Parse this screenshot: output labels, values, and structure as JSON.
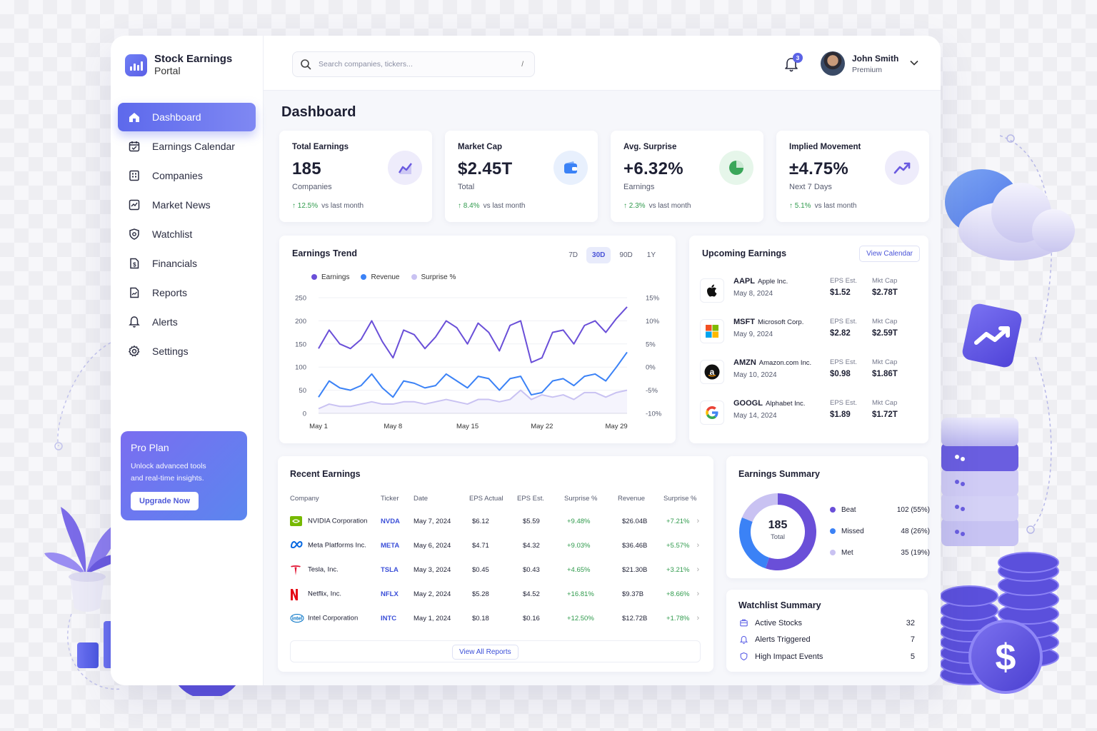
{
  "brand": {
    "title": "Stock Earnings",
    "subtitle": "Portal"
  },
  "nav": [
    {
      "label": "Dashboard",
      "icon": "home-icon",
      "active": true
    },
    {
      "label": "Earnings Calendar",
      "icon": "calendar-icon"
    },
    {
      "label": "Companies",
      "icon": "building-icon"
    },
    {
      "label": "Market News",
      "icon": "news-icon"
    },
    {
      "label": "Watchlist",
      "icon": "eye-icon"
    },
    {
      "label": "Financials",
      "icon": "dollar-icon"
    },
    {
      "label": "Reports",
      "icon": "report-icon"
    },
    {
      "label": "Alerts",
      "icon": "bell-icon"
    },
    {
      "label": "Settings",
      "icon": "gear-icon"
    }
  ],
  "pro": {
    "title": "Pro Plan",
    "text": "Unlock advanced tools and real-time insights.",
    "button": "Upgrade Now"
  },
  "search": {
    "placeholder": "Search companies, tickers...",
    "shortcut": "/"
  },
  "notifications": {
    "count": "3"
  },
  "user": {
    "name": "John Smith",
    "plan": "Premium"
  },
  "page": {
    "title": "Dashboard"
  },
  "stats": [
    {
      "label": "Total Earnings",
      "value": "185",
      "sub": "Companies",
      "change": "12.5%",
      "period": "vs last month",
      "icon": "wave-chart-icon",
      "icon_bg": "#eeecfb",
      "icon_color": "#6a5ae0"
    },
    {
      "label": "Market Cap",
      "value": "$2.45T",
      "sub": "Total",
      "change": "8.4%",
      "period": "vs last month",
      "icon": "wallet-icon",
      "icon_bg": "#e8f0fd",
      "icon_color": "#3b82f6"
    },
    {
      "label": "Avg. Surprise",
      "value": "+6.32%",
      "sub": "Earnings",
      "change": "2.3%",
      "period": "vs last month",
      "icon": "pie-icon",
      "icon_bg": "#e6f6ea",
      "icon_color": "#3aa659"
    },
    {
      "label": "Implied Movement",
      "value": "±4.75%",
      "sub": "Next 7 Days",
      "change": "5.1%",
      "period": "vs last month",
      "icon": "trend-up-icon",
      "icon_bg": "#eeecfb",
      "icon_color": "#6a5ae0"
    }
  ],
  "trend": {
    "title": "Earnings Trend",
    "ranges": [
      "7D",
      "30D",
      "90D",
      "1Y"
    ],
    "active_range": "30D"
  },
  "chart_data": {
    "type": "line",
    "x": [
      "May 1",
      "May 2",
      "May 3",
      "May 4",
      "May 5",
      "May 6",
      "May 7",
      "May 8",
      "May 9",
      "May 10",
      "May 11",
      "May 12",
      "May 13",
      "May 14",
      "May 15",
      "May 16",
      "May 17",
      "May 18",
      "May 19",
      "May 20",
      "May 21",
      "May 22",
      "May 23",
      "May 24",
      "May 25",
      "May 26",
      "May 27",
      "May 28",
      "May 29",
      "May 30"
    ],
    "xticks": [
      "May 1",
      "May 8",
      "May 15",
      "May 22",
      "May 29"
    ],
    "yticks_left": [
      "250",
      "200",
      "150",
      "100",
      "50",
      "0"
    ],
    "yticks_right": [
      "15%",
      "10%",
      "5%",
      "0%",
      "-5%",
      "-10%"
    ],
    "ylim": [
      0,
      250
    ],
    "y2lim": [
      -10,
      15
    ],
    "series": [
      {
        "name": "Earnings",
        "axis": "left",
        "color": "#6a4fd8",
        "values": [
          140,
          180,
          150,
          140,
          160,
          200,
          155,
          120,
          180,
          170,
          140,
          165,
          200,
          185,
          150,
          195,
          175,
          135,
          190,
          200,
          110,
          120,
          175,
          180,
          150,
          190,
          200,
          175,
          205,
          230
        ]
      },
      {
        "name": "Revenue",
        "axis": "left",
        "color": "#3b82f6",
        "values": [
          35,
          70,
          55,
          50,
          60,
          85,
          55,
          35,
          70,
          65,
          55,
          60,
          85,
          70,
          55,
          80,
          75,
          50,
          75,
          80,
          40,
          45,
          70,
          75,
          60,
          80,
          85,
          70,
          100,
          132
        ]
      },
      {
        "name": "Surprise %",
        "axis": "right",
        "color": "#c9c2f2",
        "values": [
          -9,
          -8,
          -8.5,
          -8.5,
          -8,
          -7.5,
          -8,
          -8,
          -7.5,
          -7.5,
          -8,
          -7.5,
          -7,
          -7.5,
          -8,
          -7,
          -7,
          -7.5,
          -7,
          -5,
          -7,
          -6,
          -6.5,
          -6,
          -7,
          -5.5,
          -5.5,
          -6.5,
          -5.5,
          -5
        ]
      }
    ]
  },
  "upcoming": {
    "title": "Upcoming Earnings",
    "button": "View Calendar",
    "eps_label": "EPS Est.",
    "cap_label": "Mkt Cap",
    "items": [
      {
        "ticker": "AAPL",
        "name": "Apple Inc.",
        "date": "May 8, 2024",
        "eps": "$1.52",
        "cap": "$2.78T",
        "logo": "apple-logo-icon"
      },
      {
        "ticker": "MSFT",
        "name": "Microsoft Corp.",
        "date": "May 9, 2024",
        "eps": "$2.82",
        "cap": "$2.59T",
        "logo": "microsoft-logo-icon"
      },
      {
        "ticker": "AMZN",
        "name": "Amazon.com Inc.",
        "date": "May 10, 2024",
        "eps": "$0.98",
        "cap": "$1.86T",
        "logo": "amazon-logo-icon"
      },
      {
        "ticker": "GOOGL",
        "name": "Alphabet Inc.",
        "date": "May 14, 2024",
        "eps": "$1.89",
        "cap": "$1.72T",
        "logo": "google-logo-icon"
      }
    ]
  },
  "recent": {
    "title": "Recent Earnings",
    "columns": [
      "Company",
      "Ticker",
      "Date",
      "EPS Actual",
      "EPS Est.",
      "Surprise %",
      "Revenue",
      "Surprise %"
    ],
    "rows": [
      {
        "company": "NVIDIA Corporation",
        "ticker": "NVDA",
        "date": "May 7, 2024",
        "actual": "$6.12",
        "est": "$5.59",
        "surprise": "+9.48%",
        "revenue": "$26.04B",
        "rev_surprise": "+7.21%",
        "logo": "nvidia-logo-icon"
      },
      {
        "company": "Meta Platforms Inc.",
        "ticker": "META",
        "date": "May 6, 2024",
        "actual": "$4.71",
        "est": "$4.32",
        "surprise": "+9.03%",
        "revenue": "$36.46B",
        "rev_surprise": "+5.57%",
        "logo": "meta-logo-icon"
      },
      {
        "company": "Tesla, Inc.",
        "ticker": "TSLA",
        "date": "May 3, 2024",
        "actual": "$0.45",
        "est": "$0.43",
        "surprise": "+4.65%",
        "revenue": "$21.30B",
        "rev_surprise": "+3.21%",
        "logo": "tesla-logo-icon"
      },
      {
        "company": "Netflix, Inc.",
        "ticker": "NFLX",
        "date": "May 2, 2024",
        "actual": "$5.28",
        "est": "$4.52",
        "surprise": "+16.81%",
        "revenue": "$9.37B",
        "rev_surprise": "+8.66%",
        "logo": "netflix-logo-icon"
      },
      {
        "company": "Intel Corporation",
        "ticker": "INTC",
        "date": "May 1, 2024",
        "actual": "$0.18",
        "est": "$0.16",
        "surprise": "+12.50%",
        "revenue": "$12.72B",
        "rev_surprise": "+1.78%",
        "logo": "intel-logo-icon"
      }
    ],
    "view_all": "View All Reports"
  },
  "summary": {
    "title": "Earnings Summary",
    "total": "185",
    "total_label": "Total",
    "items": [
      {
        "label": "Beat",
        "value": "102 (55%)",
        "count": 102,
        "color": "#6a4fd8"
      },
      {
        "label": "Missed",
        "value": "48 (26%)",
        "count": 48,
        "color": "#3b82f6"
      },
      {
        "label": "Met",
        "value": "35 (19%)",
        "count": 35,
        "color": "#c9c2f2"
      }
    ]
  },
  "watchlist": {
    "title": "Watchlist Summary",
    "items": [
      {
        "label": "Active Stocks",
        "value": "32",
        "icon": "briefcase-icon"
      },
      {
        "label": "Alerts Triggered",
        "value": "7",
        "icon": "bell-icon"
      },
      {
        "label": "High Impact Events",
        "value": "5",
        "icon": "shield-icon"
      }
    ]
  }
}
